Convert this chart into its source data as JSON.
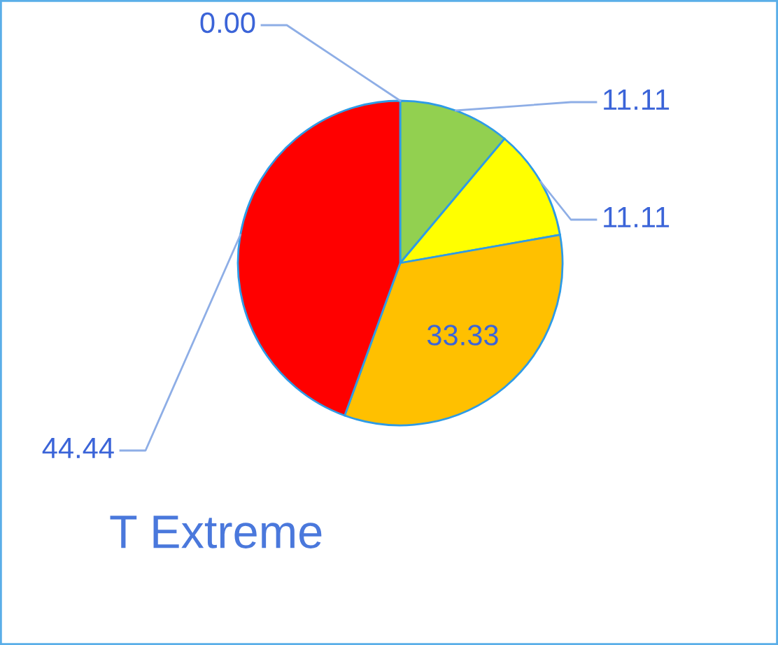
{
  "chart_data": {
    "type": "pie",
    "title": "T Extreme",
    "categories": [
      null,
      null,
      null,
      null,
      null
    ],
    "values": [
      0.0,
      11.11,
      11.11,
      33.33,
      44.44
    ],
    "colors": [
      "#4472c4",
      "#92d050",
      "#ffff00",
      "#ffc000",
      "#ff0000"
    ],
    "value_labels": [
      "0.00",
      "11.11",
      "11.11",
      "33.33",
      "44.44"
    ]
  }
}
